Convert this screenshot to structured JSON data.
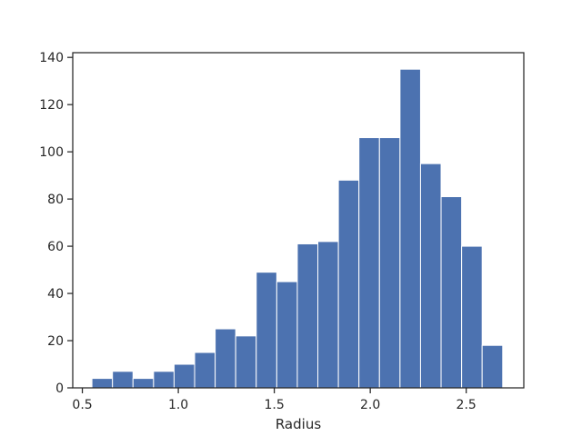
{
  "chart_data": {
    "type": "bar",
    "subtype": "histogram",
    "title": "",
    "xlabel": "Radius",
    "ylabel": "",
    "xlim": [
      0.45,
      2.8
    ],
    "ylim": [
      0,
      142
    ],
    "x_ticks": [
      0.5,
      1.0,
      1.5,
      2.0,
      2.5
    ],
    "x_tick_labels": [
      "0.5",
      "1.0",
      "1.5",
      "2.0",
      "2.5"
    ],
    "y_ticks": [
      0,
      20,
      40,
      60,
      80,
      100,
      120,
      140
    ],
    "y_tick_labels": [
      "0",
      "20",
      "40",
      "60",
      "80",
      "100",
      "120",
      "140"
    ],
    "bin_edges": [
      0.55,
      0.657,
      0.764,
      0.871,
      0.978,
      1.085,
      1.192,
      1.299,
      1.406,
      1.513,
      1.62,
      1.727,
      1.834,
      1.941,
      2.048,
      2.155,
      2.262,
      2.369,
      2.476,
      2.583,
      2.69
    ],
    "counts": [
      4,
      7,
      4,
      7,
      10,
      15,
      25,
      22,
      49,
      45,
      61,
      62,
      88,
      106,
      106,
      135,
      95,
      81,
      60,
      18
    ],
    "bar_color": "#4c72b0",
    "bar_edge_color": "#ffffff",
    "grid": false,
    "legend": "none"
  }
}
